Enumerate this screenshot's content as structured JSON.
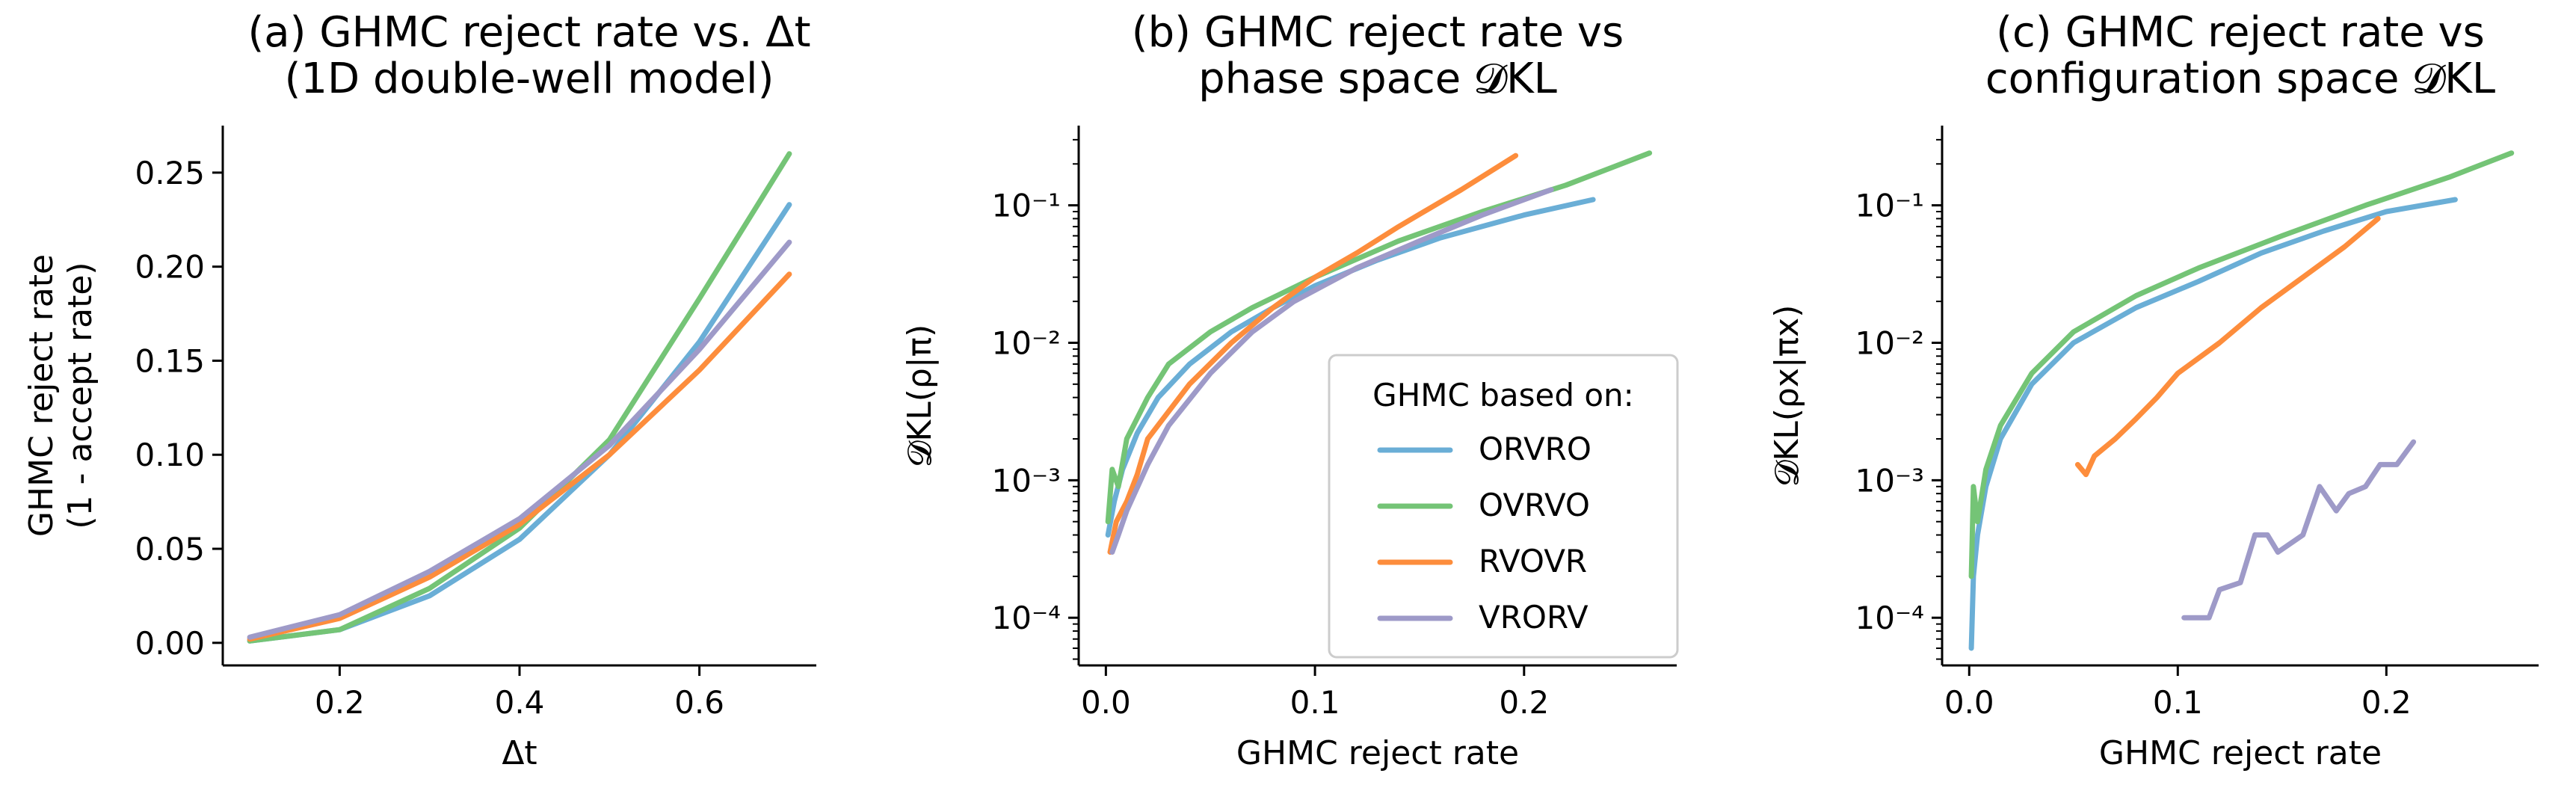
{
  "chart_data": [
    {
      "id": "a",
      "type": "line",
      "title_lines": [
        "(a) GHMC reject rate vs. Δt",
        "(1D double-well model)"
      ],
      "xlabel": "Δt",
      "ylabel_lines": [
        "GHMC reject rate",
        "(1 - accept rate)"
      ],
      "xscale": "linear",
      "yscale": "linear",
      "xlim": [
        0.07,
        0.73
      ],
      "ylim": [
        -0.012,
        0.275
      ],
      "xticks": [
        0.2,
        0.4,
        0.6
      ],
      "xtick_labels": [
        "0.2",
        "0.4",
        "0.6"
      ],
      "yticks": [
        0.0,
        0.05,
        0.1,
        0.15,
        0.2,
        0.25
      ],
      "ytick_labels": [
        "0.00",
        "0.05",
        "0.10",
        "0.15",
        "0.20",
        "0.25"
      ],
      "series": [
        {
          "name": "ORVRO",
          "color": "#6aaed6",
          "points": [
            [
              0.1,
              0.001
            ],
            [
              0.2,
              0.007
            ],
            [
              0.3,
              0.025
            ],
            [
              0.4,
              0.055
            ],
            [
              0.5,
              0.1
            ],
            [
              0.6,
              0.16
            ],
            [
              0.7,
              0.233
            ]
          ]
        },
        {
          "name": "OVRVO",
          "color": "#74c476",
          "points": [
            [
              0.1,
              0.001
            ],
            [
              0.2,
              0.007
            ],
            [
              0.3,
              0.029
            ],
            [
              0.4,
              0.061
            ],
            [
              0.5,
              0.108
            ],
            [
              0.6,
              0.183
            ],
            [
              0.7,
              0.26
            ]
          ]
        },
        {
          "name": "RVOVR",
          "color": "#fd8d3c",
          "points": [
            [
              0.1,
              0.002
            ],
            [
              0.2,
              0.013
            ],
            [
              0.3,
              0.035
            ],
            [
              0.4,
              0.063
            ],
            [
              0.5,
              0.1
            ],
            [
              0.6,
              0.145
            ],
            [
              0.7,
              0.196
            ]
          ]
        },
        {
          "name": "VRORV",
          "color": "#9e9ac8",
          "points": [
            [
              0.1,
              0.003
            ],
            [
              0.2,
              0.015
            ],
            [
              0.3,
              0.038
            ],
            [
              0.4,
              0.066
            ],
            [
              0.5,
              0.105
            ],
            [
              0.6,
              0.156
            ],
            [
              0.7,
              0.213
            ]
          ]
        }
      ]
    },
    {
      "id": "b",
      "type": "line",
      "title_lines": [
        "(b) GHMC reject rate vs",
        "phase space 𝓓KL"
      ],
      "xlabel": "GHMC reject rate",
      "ylabel": "𝓓KL(ρ|π)",
      "xscale": "linear",
      "yscale": "log",
      "xlim": [
        -0.013,
        0.273
      ],
      "ylim": [
        4.5e-05,
        0.38
      ],
      "xticks": [
        0.0,
        0.1,
        0.2
      ],
      "xtick_labels": [
        "0.0",
        "0.1",
        "0.2"
      ],
      "yticks": [
        0.0001,
        0.001,
        0.01,
        0.1
      ],
      "ytick_labels": [
        "10⁻⁴",
        "10⁻³",
        "10⁻²",
        "10⁻¹"
      ],
      "legend": {
        "title": "GHMC based on:",
        "location": "lower right"
      },
      "series": [
        {
          "name": "ORVRO",
          "color": "#6aaed6",
          "points": [
            [
              0.001,
              0.0004
            ],
            [
              0.004,
              0.0007
            ],
            [
              0.008,
              0.0012
            ],
            [
              0.015,
              0.0022
            ],
            [
              0.025,
              0.004
            ],
            [
              0.04,
              0.007
            ],
            [
              0.06,
              0.012
            ],
            [
              0.08,
              0.018
            ],
            [
              0.1,
              0.026
            ],
            [
              0.13,
              0.04
            ],
            [
              0.16,
              0.058
            ],
            [
              0.2,
              0.085
            ],
            [
              0.233,
              0.11
            ]
          ]
        },
        {
          "name": "OVRVO",
          "color": "#74c476",
          "points": [
            [
              0.001,
              0.0005
            ],
            [
              0.003,
              0.0012
            ],
            [
              0.006,
              0.0009
            ],
            [
              0.01,
              0.002
            ],
            [
              0.02,
              0.004
            ],
            [
              0.03,
              0.007
            ],
            [
              0.05,
              0.012
            ],
            [
              0.07,
              0.018
            ],
            [
              0.1,
              0.03
            ],
            [
              0.14,
              0.055
            ],
            [
              0.18,
              0.09
            ],
            [
              0.22,
              0.14
            ],
            [
              0.26,
              0.24
            ]
          ]
        },
        {
          "name": "RVOVR",
          "color": "#fd8d3c",
          "points": [
            [
              0.002,
              0.0003
            ],
            [
              0.005,
              0.0005
            ],
            [
              0.01,
              0.0007
            ],
            [
              0.015,
              0.0011
            ],
            [
              0.02,
              0.002
            ],
            [
              0.04,
              0.005
            ],
            [
              0.06,
              0.01
            ],
            [
              0.08,
              0.018
            ],
            [
              0.1,
              0.03
            ],
            [
              0.12,
              0.045
            ],
            [
              0.14,
              0.07
            ],
            [
              0.17,
              0.13
            ],
            [
              0.196,
              0.23
            ]
          ]
        },
        {
          "name": "VRORV",
          "color": "#9e9ac8",
          "points": [
            [
              0.003,
              0.0003
            ],
            [
              0.006,
              0.0004
            ],
            [
              0.01,
              0.0006
            ],
            [
              0.02,
              0.0013
            ],
            [
              0.03,
              0.0025
            ],
            [
              0.05,
              0.006
            ],
            [
              0.07,
              0.012
            ],
            [
              0.09,
              0.02
            ],
            [
              0.12,
              0.035
            ],
            [
              0.15,
              0.055
            ],
            [
              0.18,
              0.085
            ],
            [
              0.213,
              0.13
            ]
          ]
        }
      ]
    },
    {
      "id": "c",
      "type": "line",
      "title_lines": [
        "(c) GHMC reject rate vs",
        "configuration space 𝓓KL"
      ],
      "xlabel": "GHMC reject rate",
      "ylabel": "𝓓KL(ρx|πx)",
      "xscale": "linear",
      "yscale": "log",
      "xlim": [
        -0.013,
        0.273
      ],
      "ylim": [
        4.5e-05,
        0.38
      ],
      "xticks": [
        0.0,
        0.1,
        0.2
      ],
      "xtick_labels": [
        "0.0",
        "0.1",
        "0.2"
      ],
      "yticks": [
        0.0001,
        0.001,
        0.01,
        0.1
      ],
      "ytick_labels": [
        "10⁻⁴",
        "10⁻³",
        "10⁻²",
        "10⁻¹"
      ],
      "series": [
        {
          "name": "ORVRO",
          "color": "#6aaed6",
          "points": [
            [
              0.001,
              6e-05
            ],
            [
              0.002,
              0.0002
            ],
            [
              0.004,
              0.0004
            ],
            [
              0.008,
              0.0009
            ],
            [
              0.015,
              0.002
            ],
            [
              0.03,
              0.005
            ],
            [
              0.05,
              0.01
            ],
            [
              0.08,
              0.018
            ],
            [
              0.11,
              0.028
            ],
            [
              0.14,
              0.045
            ],
            [
              0.17,
              0.065
            ],
            [
              0.2,
              0.09
            ],
            [
              0.233,
              0.11
            ]
          ]
        },
        {
          "name": "OVRVO",
          "color": "#74c476",
          "points": [
            [
              0.001,
              0.0002
            ],
            [
              0.002,
              0.0009
            ],
            [
              0.004,
              0.0005
            ],
            [
              0.008,
              0.0012
            ],
            [
              0.015,
              0.0025
            ],
            [
              0.03,
              0.006
            ],
            [
              0.05,
              0.012
            ],
            [
              0.08,
              0.022
            ],
            [
              0.11,
              0.035
            ],
            [
              0.15,
              0.06
            ],
            [
              0.19,
              0.1
            ],
            [
              0.23,
              0.16
            ],
            [
              0.26,
              0.24
            ]
          ]
        },
        {
          "name": "RVOVR",
          "color": "#fd8d3c",
          "points": [
            [
              0.052,
              0.0013
            ],
            [
              0.056,
              0.0011
            ],
            [
              0.06,
              0.0015
            ],
            [
              0.07,
              0.002
            ],
            [
              0.08,
              0.0028
            ],
            [
              0.09,
              0.004
            ],
            [
              0.1,
              0.006
            ],
            [
              0.12,
              0.01
            ],
            [
              0.14,
              0.018
            ],
            [
              0.16,
              0.03
            ],
            [
              0.18,
              0.05
            ],
            [
              0.196,
              0.08
            ]
          ]
        },
        {
          "name": "VRORV",
          "color": "#9e9ac8",
          "points": [
            [
              0.103,
              0.0001
            ],
            [
              0.115,
              0.0001
            ],
            [
              0.12,
              0.00016
            ],
            [
              0.13,
              0.00018
            ],
            [
              0.137,
              0.0004
            ],
            [
              0.143,
              0.0004
            ],
            [
              0.148,
              0.0003
            ],
            [
              0.16,
              0.0004
            ],
            [
              0.168,
              0.0009
            ],
            [
              0.176,
              0.0006
            ],
            [
              0.182,
              0.0008
            ],
            [
              0.19,
              0.0009
            ],
            [
              0.197,
              0.0013
            ],
            [
              0.205,
              0.0013
            ],
            [
              0.213,
              0.0019
            ]
          ]
        }
      ]
    }
  ]
}
